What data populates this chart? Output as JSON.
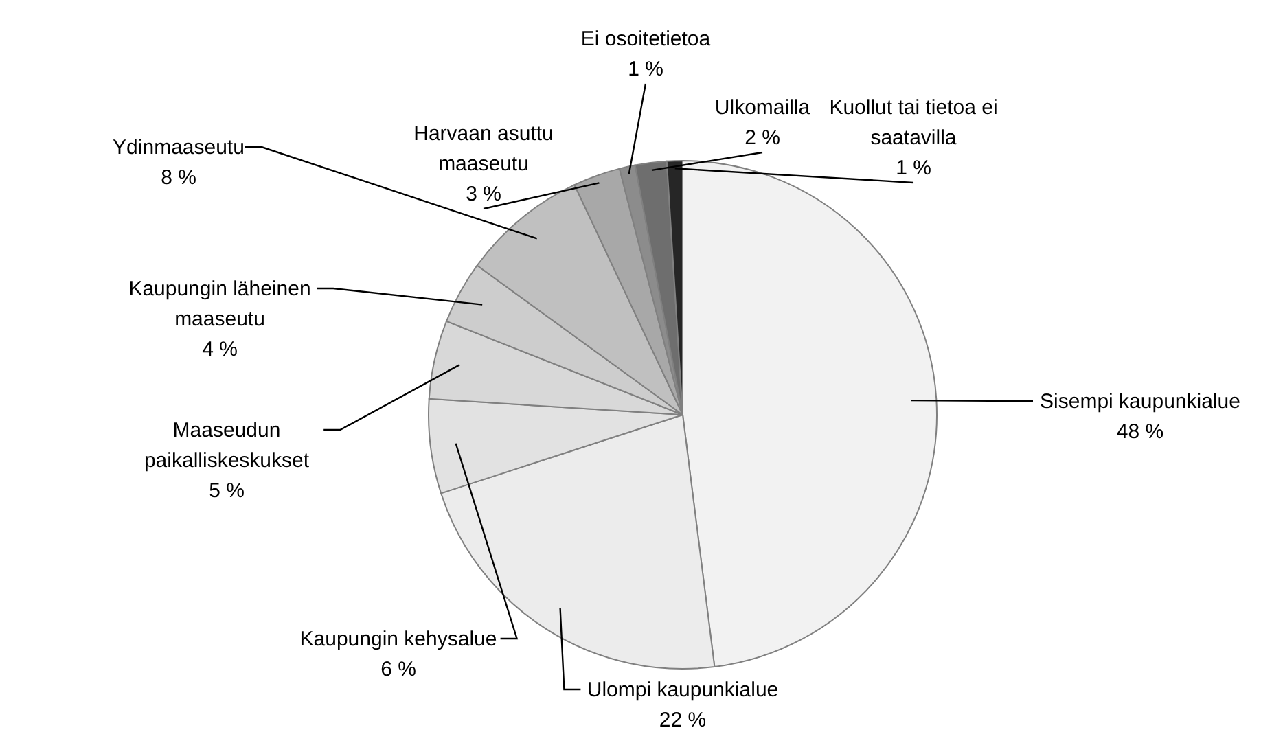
{
  "chart_data": {
    "type": "pie",
    "categories": [
      "Sisempi kaupunkialue",
      "Ulompi kaupunkialue",
      "Kaupungin kehysalue",
      "Maaseudun paikalliskeskukset",
      "Kaupungin läheinen maaseutu",
      "Ydinmaaseutu",
      "Harvaan asuttu maaseutu",
      "Ei osoitetietoa",
      "Ulkomailla",
      "Kuollut tai tietoa ei saatavilla"
    ],
    "values": [
      48,
      22,
      6,
      5,
      4,
      8,
      3,
      1,
      2,
      1
    ],
    "value_labels": [
      "48 %",
      "22 %",
      "6 %",
      "5 %",
      "4 %",
      "8 %",
      "3 %",
      "1 %",
      "2 %",
      "1 %"
    ],
    "colors": [
      "#f2f2f2",
      "#ececec",
      "#e2e2e2",
      "#d8d8d8",
      "#cdcdcd",
      "#c0c0c0",
      "#a8a8a8",
      "#8c8c8c",
      "#6e6e6e",
      "#262626"
    ]
  }
}
